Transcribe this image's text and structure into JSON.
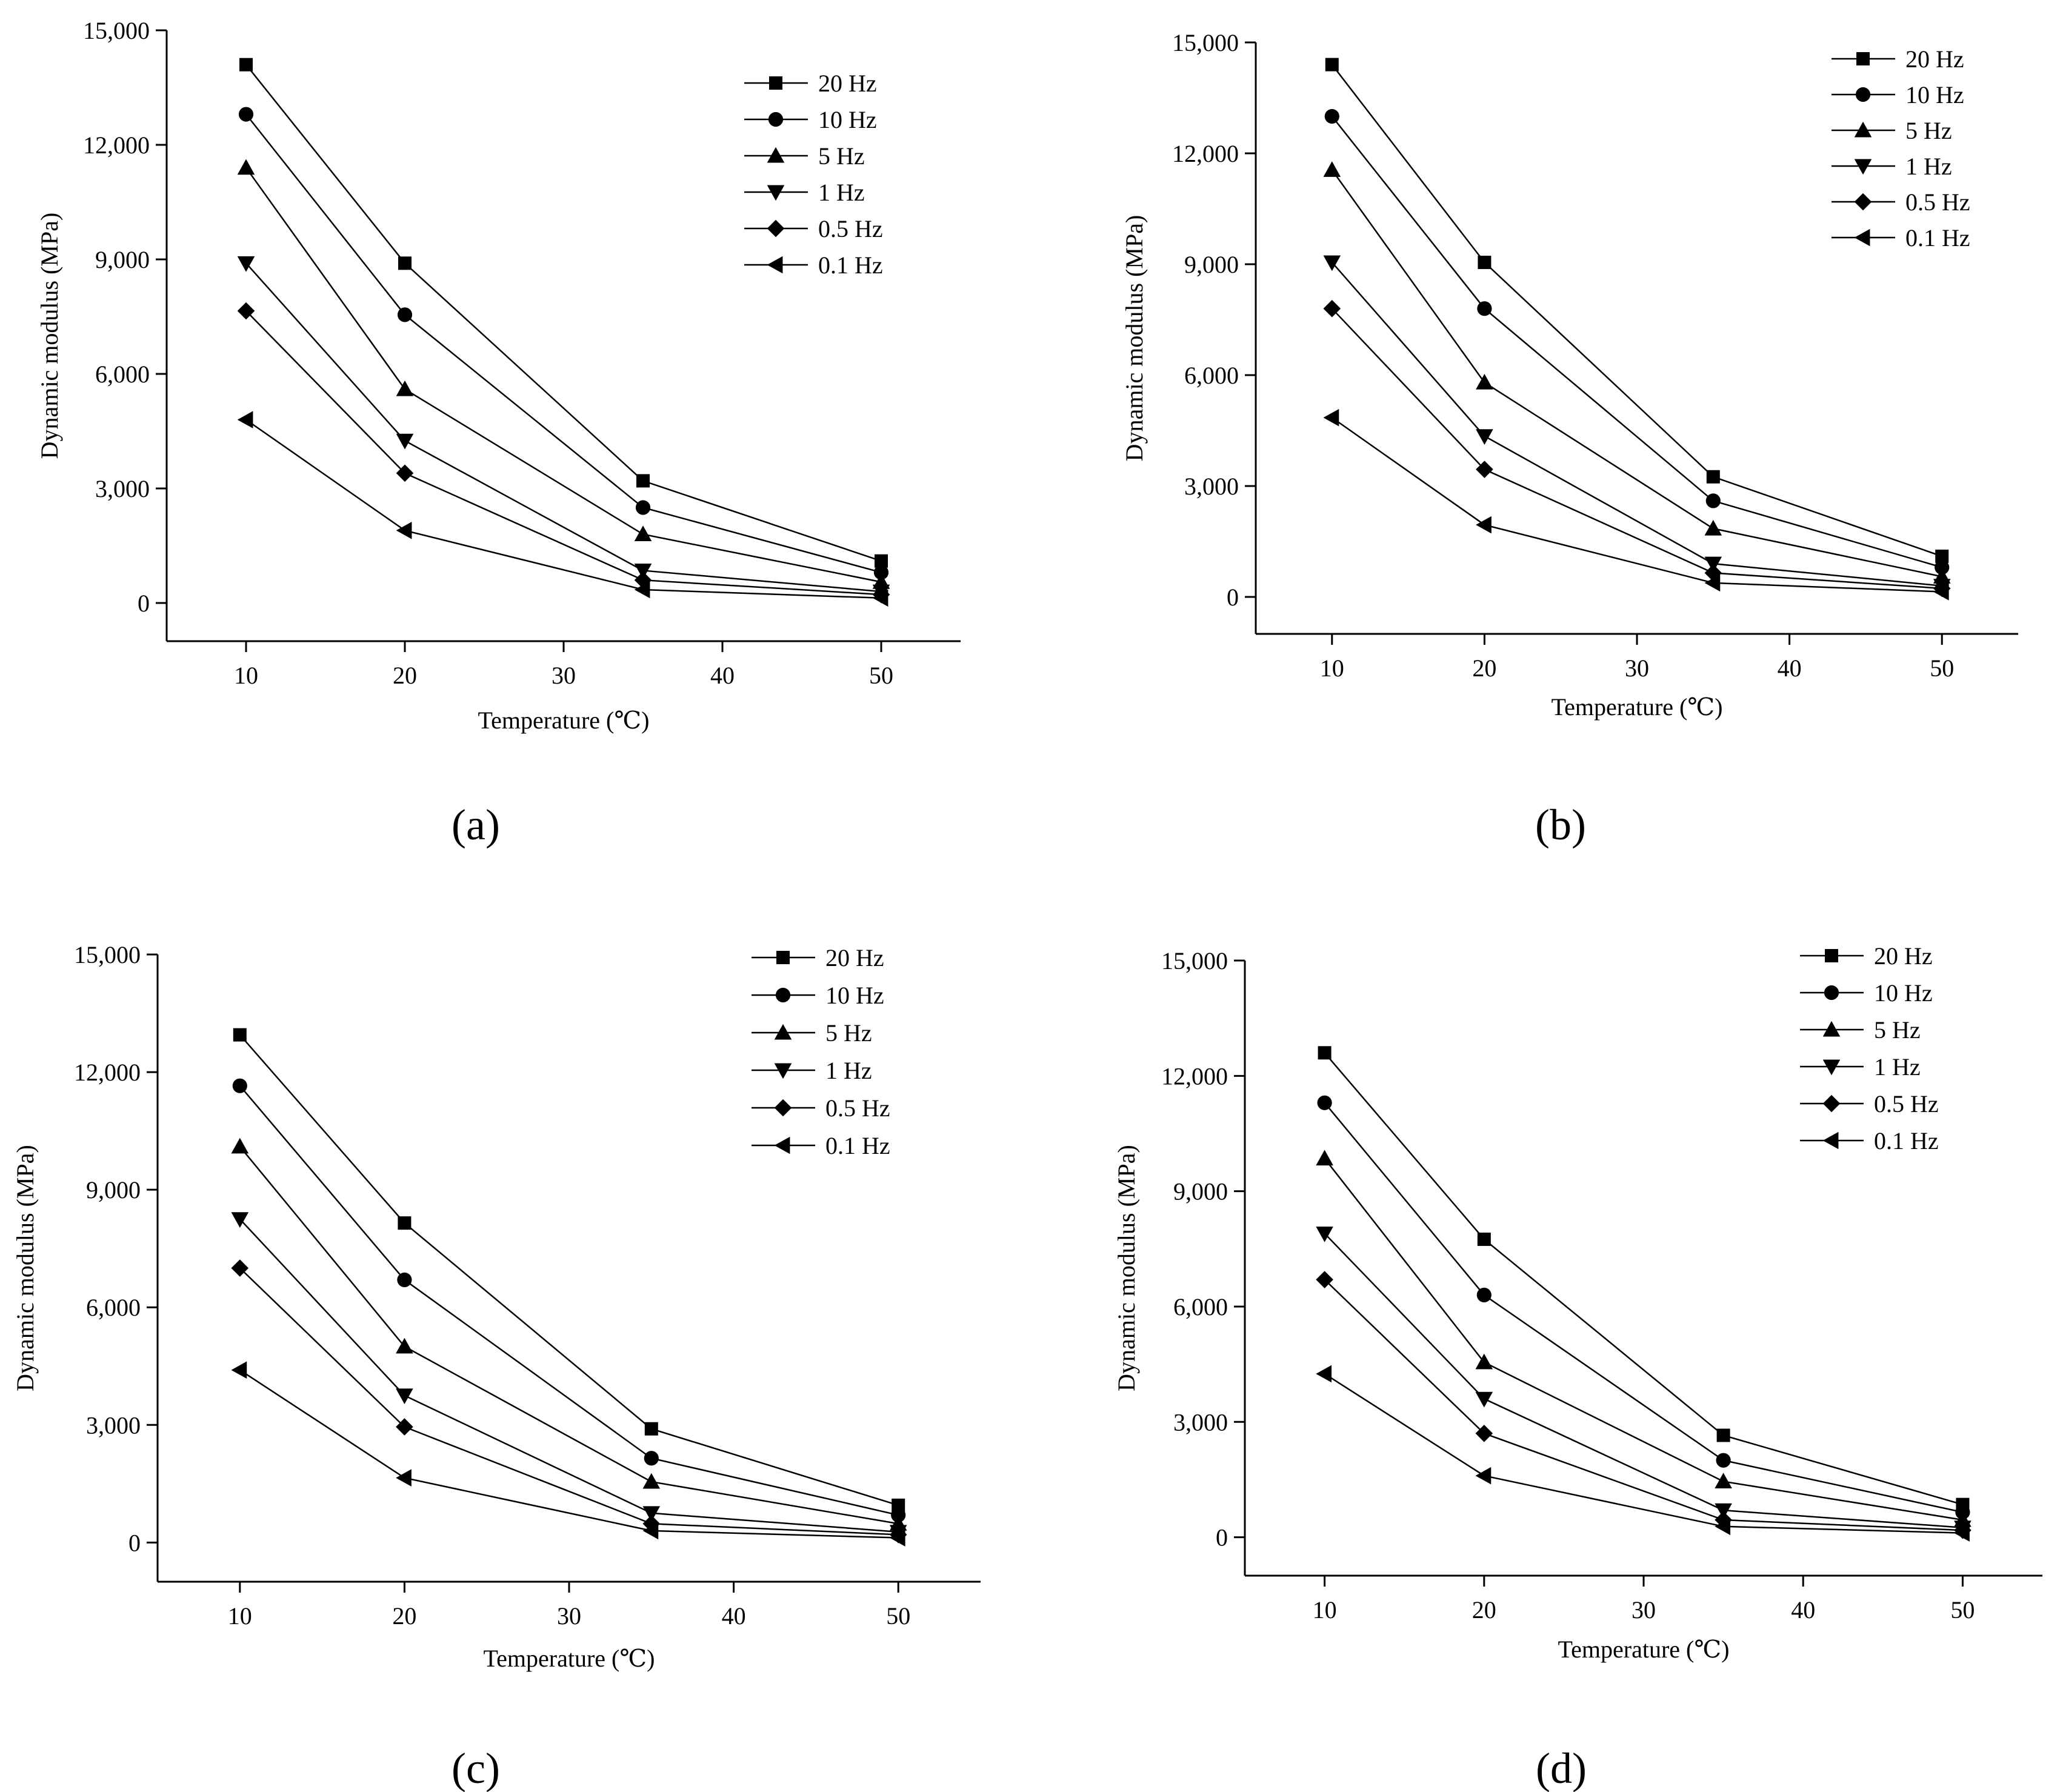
{
  "chart_data": [
    {
      "type": "line",
      "panel_label": "(a)",
      "xlabel": "Temperature (℃)",
      "ylabel": "Dynamic modulus (MPa)",
      "xlim": [
        5,
        55
      ],
      "ylim": [
        -1000,
        15000
      ],
      "xticks": [
        10,
        20,
        30,
        40,
        50
      ],
      "yticks": [
        0,
        3000,
        6000,
        9000,
        12000,
        15000
      ],
      "xtick_labels": [
        "10",
        "20",
        "30",
        "40",
        "50"
      ],
      "ytick_labels": [
        "0",
        "3,000",
        "6,000",
        "9,000",
        "12,000",
        "15,000"
      ],
      "grid": false,
      "legend_position": "top-right",
      "x": [
        10,
        20,
        35,
        50
      ],
      "series": [
        {
          "name": "20 Hz",
          "marker": "square",
          "values": [
            14100,
            8900,
            3200,
            1100
          ]
        },
        {
          "name": "10 Hz",
          "marker": "circle",
          "values": [
            12800,
            7550,
            2500,
            800
          ]
        },
        {
          "name": "5 Hz",
          "marker": "triangle-up",
          "values": [
            11400,
            5600,
            1800,
            550
          ]
        },
        {
          "name": "1 Hz",
          "marker": "triangle-down",
          "values": [
            8900,
            4250,
            850,
            300
          ]
        },
        {
          "name": "0.5 Hz",
          "marker": "diamond",
          "values": [
            7650,
            3400,
            600,
            220
          ]
        },
        {
          "name": "0.1 Hz",
          "marker": "triangle-left",
          "values": [
            4800,
            1900,
            350,
            130
          ]
        }
      ]
    },
    {
      "type": "line",
      "panel_label": "(b)",
      "xlabel": "Temperature (℃)",
      "ylabel": "Dynamic modulus (MPa)",
      "xlim": [
        5,
        55
      ],
      "ylim": [
        -1000,
        15000
      ],
      "xticks": [
        10,
        20,
        30,
        40,
        50
      ],
      "yticks": [
        0,
        3000,
        6000,
        9000,
        12000,
        15000
      ],
      "xtick_labels": [
        "10",
        "20",
        "30",
        "40",
        "50"
      ],
      "ytick_labels": [
        "0",
        "3,000",
        "6,000",
        "9,000",
        "12,000",
        "15,000"
      ],
      "grid": false,
      "legend_position": "top-right",
      "x": [
        10,
        20,
        35,
        50
      ],
      "series": [
        {
          "name": "20 Hz",
          "marker": "square",
          "values": [
            14400,
            9050,
            3250,
            1100
          ]
        },
        {
          "name": "10 Hz",
          "marker": "circle",
          "values": [
            13000,
            7800,
            2600,
            800
          ]
        },
        {
          "name": "5 Hz",
          "marker": "triangle-up",
          "values": [
            11550,
            5800,
            1850,
            550
          ]
        },
        {
          "name": "1 Hz",
          "marker": "triangle-down",
          "values": [
            9050,
            4350,
            900,
            300
          ]
        },
        {
          "name": "0.5 Hz",
          "marker": "diamond",
          "values": [
            7800,
            3450,
            650,
            230
          ]
        },
        {
          "name": "0.1 Hz",
          "marker": "triangle-left",
          "values": [
            4850,
            1950,
            380,
            140
          ]
        }
      ]
    },
    {
      "type": "line",
      "panel_label": "(c)",
      "xlabel": "Temperature (℃)",
      "ylabel": "Dynamic modulus (MPa)",
      "xlim": [
        5,
        55
      ],
      "ylim": [
        -1000,
        15000
      ],
      "xticks": [
        10,
        20,
        30,
        40,
        50
      ],
      "yticks": [
        0,
        3000,
        6000,
        9000,
        12000,
        15000
      ],
      "xtick_labels": [
        "10",
        "20",
        "30",
        "40",
        "50"
      ],
      "ytick_labels": [
        "0",
        "3,000",
        "6,000",
        "9,000",
        "12,000",
        "15,000"
      ],
      "grid": false,
      "legend_position": "top-right",
      "x": [
        10,
        20,
        35,
        50
      ],
      "series": [
        {
          "name": "20 Hz",
          "marker": "square",
          "values": [
            12950,
            8150,
            2900,
            950
          ]
        },
        {
          "name": "10 Hz",
          "marker": "circle",
          "values": [
            11650,
            6700,
            2150,
            700
          ]
        },
        {
          "name": "5 Hz",
          "marker": "triangle-up",
          "values": [
            10100,
            5000,
            1550,
            480
          ]
        },
        {
          "name": "1 Hz",
          "marker": "triangle-down",
          "values": [
            8250,
            3750,
            750,
            270
          ]
        },
        {
          "name": "0.5 Hz",
          "marker": "diamond",
          "values": [
            7000,
            2950,
            480,
            200
          ]
        },
        {
          "name": "0.1 Hz",
          "marker": "triangle-left",
          "values": [
            4400,
            1650,
            300,
            120
          ]
        }
      ]
    },
    {
      "type": "line",
      "panel_label": "(d)",
      "xlabel": "Temperature (℃)",
      "ylabel": "Dynamic modulus (MPa)",
      "xlim": [
        5,
        55
      ],
      "ylim": [
        -1000,
        15000
      ],
      "xticks": [
        10,
        20,
        30,
        40,
        50
      ],
      "yticks": [
        0,
        3000,
        6000,
        9000,
        12000,
        15000
      ],
      "xtick_labels": [
        "10",
        "20",
        "30",
        "40",
        "50"
      ],
      "ytick_labels": [
        "0",
        "3,000",
        "6,000",
        "9,000",
        "12,000",
        "15,000"
      ],
      "grid": false,
      "legend_position": "top-right",
      "x": [
        10,
        20,
        35,
        50
      ],
      "series": [
        {
          "name": "20 Hz",
          "marker": "square",
          "values": [
            12600,
            7750,
            2650,
            850
          ]
        },
        {
          "name": "10 Hz",
          "marker": "circle",
          "values": [
            11300,
            6300,
            2000,
            650
          ]
        },
        {
          "name": "5 Hz",
          "marker": "triangle-up",
          "values": [
            9850,
            4550,
            1450,
            450
          ]
        },
        {
          "name": "1 Hz",
          "marker": "triangle-down",
          "values": [
            7900,
            3600,
            700,
            250
          ]
        },
        {
          "name": "0.5 Hz",
          "marker": "diamond",
          "values": [
            6700,
            2700,
            450,
            180
          ]
        },
        {
          "name": "0.1 Hz",
          "marker": "triangle-left",
          "values": [
            4250,
            1600,
            280,
            110
          ]
        }
      ]
    }
  ]
}
